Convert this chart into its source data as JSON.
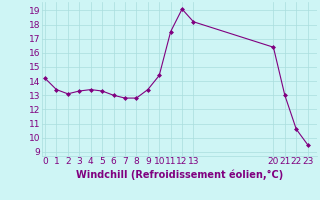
{
  "x": [
    0,
    1,
    2,
    3,
    4,
    5,
    6,
    7,
    8,
    9,
    10,
    11,
    12,
    13,
    20,
    21,
    22,
    23
  ],
  "y": [
    14.2,
    13.4,
    13.1,
    13.3,
    13.4,
    13.3,
    13.0,
    12.8,
    12.8,
    13.4,
    14.4,
    17.5,
    19.1,
    18.2,
    16.4,
    13.0,
    10.6,
    9.5
  ],
  "line_color": "#800080",
  "marker": "D",
  "marker_size": 2.0,
  "bg_color": "#cef5f5",
  "grid_color": "#aadddd",
  "xlabel": "Windchill (Refroidissement éolien,°C)",
  "xlabel_fontsize": 7,
  "ylabel_ticks": [
    9,
    10,
    11,
    12,
    13,
    14,
    15,
    16,
    17,
    18,
    19
  ],
  "xticks": [
    0,
    1,
    2,
    3,
    4,
    5,
    6,
    7,
    8,
    9,
    10,
    11,
    12,
    13,
    20,
    21,
    22,
    23
  ],
  "xlim": [
    -0.3,
    23.8
  ],
  "ylim": [
    8.7,
    19.6
  ],
  "tick_fontsize": 6.5,
  "tick_color": "#800080",
  "line_width": 0.8
}
